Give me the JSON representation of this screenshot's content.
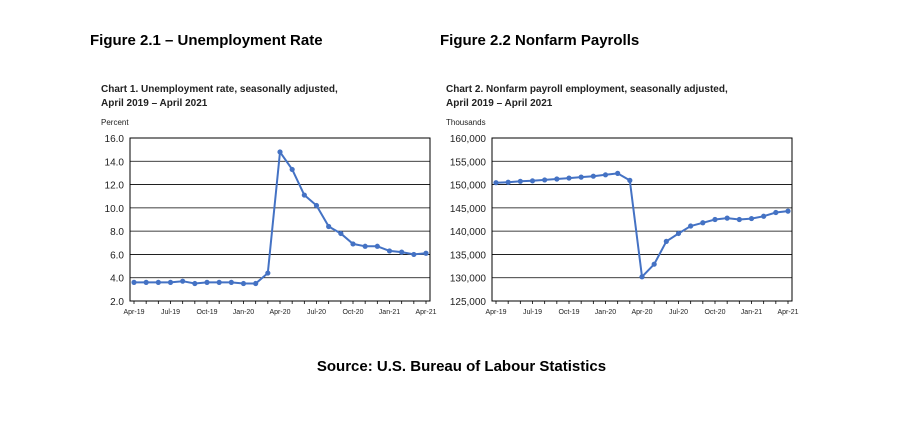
{
  "figures": [
    {
      "title": "Figure 2.1 – Unemployment Rate"
    },
    {
      "title": "Figure 2.2 Nonfarm Payrolls"
    }
  ],
  "source": "Source: U.S. Bureau of Labour Statistics",
  "chart_data": [
    {
      "type": "line",
      "title": "Chart 1. Unemployment rate, seasonally adjusted,",
      "subtitle": "April 2019 – April 2021",
      "ylabel": "Percent",
      "xlabel": "",
      "ylim": [
        2.0,
        16.0
      ],
      "yticks": [
        "16.0",
        "14.0",
        "12.0",
        "10.0",
        "8.0",
        "6.0",
        "4.0",
        "2.0"
      ],
      "xtick_labels": [
        "Apr-19",
        "Jul-19",
        "Oct-19",
        "Jan-20",
        "Apr-20",
        "Jul-20",
        "Oct-20",
        "Jan-21",
        "Apr-21"
      ],
      "grid": true,
      "color": "#4472c4",
      "x": [
        "Apr-19",
        "May-19",
        "Jun-19",
        "Jul-19",
        "Aug-19",
        "Sep-19",
        "Oct-19",
        "Nov-19",
        "Dec-19",
        "Jan-20",
        "Feb-20",
        "Mar-20",
        "Apr-20",
        "May-20",
        "Jun-20",
        "Jul-20",
        "Aug-20",
        "Sep-20",
        "Oct-20",
        "Nov-20",
        "Dec-20",
        "Jan-21",
        "Feb-21",
        "Mar-21",
        "Apr-21"
      ],
      "values": [
        3.6,
        3.6,
        3.6,
        3.6,
        3.7,
        3.5,
        3.6,
        3.6,
        3.6,
        3.5,
        3.5,
        4.4,
        14.8,
        13.3,
        11.1,
        10.2,
        8.4,
        7.8,
        6.9,
        6.7,
        6.7,
        6.3,
        6.2,
        6.0,
        6.1
      ]
    },
    {
      "type": "line",
      "title": "Chart 2. Nonfarm payroll employment, seasonally adjusted,",
      "subtitle": "April 2019 – April 2021",
      "ylabel": "Thousands",
      "xlabel": "",
      "ylim": [
        125000,
        160000
      ],
      "yticks": [
        "160,000",
        "155,000",
        "150,000",
        "145,000",
        "140,000",
        "135,000",
        "130,000",
        "125,000"
      ],
      "xtick_labels": [
        "Apr-19",
        "Jul-19",
        "Oct-19",
        "Jan-20",
        "Apr-20",
        "Jul-20",
        "Oct-20",
        "Jan-21",
        "Apr-21"
      ],
      "grid": true,
      "color": "#4472c4",
      "x": [
        "Apr-19",
        "May-19",
        "Jun-19",
        "Jul-19",
        "Aug-19",
        "Sep-19",
        "Oct-19",
        "Nov-19",
        "Dec-19",
        "Jan-20",
        "Feb-20",
        "Mar-20",
        "Apr-20",
        "May-20",
        "Jun-20",
        "Jul-20",
        "Aug-20",
        "Sep-20",
        "Oct-20",
        "Nov-20",
        "Dec-20",
        "Jan-21",
        "Feb-21",
        "Mar-21",
        "Apr-21"
      ],
      "values": [
        150400,
        150500,
        150700,
        150800,
        151000,
        151200,
        151400,
        151600,
        151800,
        152100,
        152400,
        150900,
        130200,
        132900,
        137800,
        139500,
        141100,
        141800,
        142500,
        142800,
        142500,
        142700,
        143200,
        144000,
        144300
      ]
    }
  ]
}
